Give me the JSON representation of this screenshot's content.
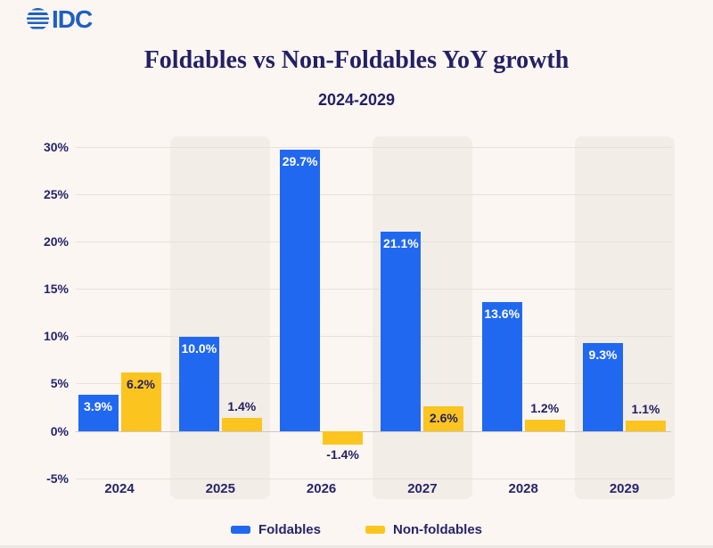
{
  "logo": {
    "text": "IDC"
  },
  "colors": {
    "background": "#fbf6f1",
    "band": "#f3ede7",
    "navy_text": "#232064",
    "logo_blue": "#1e5fc2",
    "foldables_blue": "#2168f0",
    "non_foldables_yellow": "#fcc41f",
    "gridline": "#e7e1da",
    "zero_line": "#cfc8c1"
  },
  "chart_data": {
    "type": "bar",
    "title": "Foldables vs Non-Foldables YoY growth",
    "subtitle": "2024-2029",
    "xlabel": "",
    "ylabel": "",
    "categories": [
      "2024",
      "2025",
      "2026",
      "2027",
      "2028",
      "2029"
    ],
    "series": [
      {
        "name": "Foldables",
        "color": "#2168f0",
        "values": [
          3.9,
          10.0,
          29.7,
          21.1,
          13.6,
          9.3
        ],
        "labels": [
          "3.9%",
          "10.0%",
          "29.7%",
          "21.1%",
          "13.6%",
          "9.3%"
        ],
        "inside_label_color": "#ffffff"
      },
      {
        "name": "Non-foldables",
        "color": "#fcc41f",
        "values": [
          6.2,
          1.4,
          -1.4,
          2.6,
          1.2,
          1.1
        ],
        "labels": [
          "6.2%",
          "1.4%",
          "-1.4%",
          "2.6%",
          "1.2%",
          "1.1%"
        ],
        "inside_label_color": "#232064"
      }
    ],
    "yticks": [
      30,
      25,
      20,
      15,
      10,
      5,
      0,
      -5
    ],
    "ytick_labels": [
      "30%",
      "25%",
      "20%",
      "15%",
      "10%",
      "5%",
      "0%",
      "-5%"
    ],
    "ylim": [
      -7,
      31
    ],
    "grid": true,
    "legend_position": "bottom"
  }
}
